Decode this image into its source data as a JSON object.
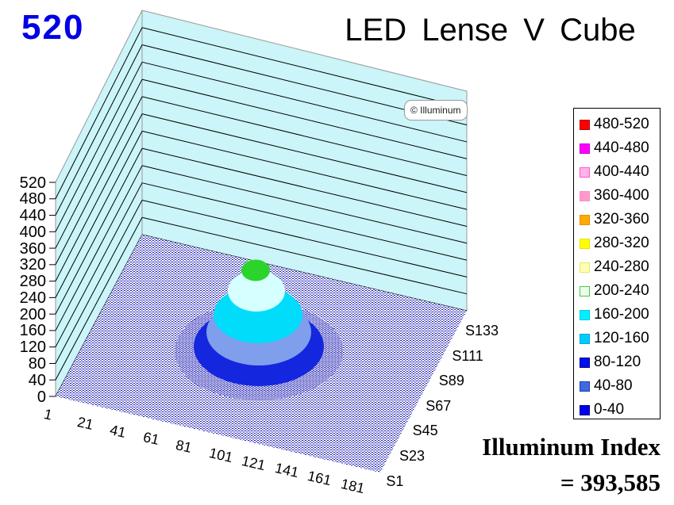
{
  "corner_value": "520",
  "title": "LED Lense V Cube",
  "watermark": {
    "text": "© Illuminum"
  },
  "index_caption": {
    "line1": "Illuminum Index",
    "line2": "= 393,585"
  },
  "legend": {
    "items": [
      {
        "label": "480-520",
        "fill": "#FF0000",
        "border": "#C00000"
      },
      {
        "label": "440-480",
        "fill": "#FF00FF",
        "border": "#C800C8"
      },
      {
        "label": "400-440",
        "fill": "#FFB3E6",
        "border": "#FF55D5"
      },
      {
        "label": "360-400",
        "fill": "#FF99CC",
        "border": "#F593C2"
      },
      {
        "label": "320-360",
        "fill": "#FFAA00",
        "border": "#E09000"
      },
      {
        "label": "280-320",
        "fill": "#FFFF00",
        "border": "#E6E600"
      },
      {
        "label": "240-280",
        "fill": "#FFFFB3",
        "border": "#E8E86A"
      },
      {
        "label": "200-240",
        "fill": "#EBFFEB",
        "border": "#4CC44C"
      },
      {
        "label": "160-200",
        "fill": "#00F0FF",
        "border": "#00C8E0"
      },
      {
        "label": "120-160",
        "fill": "#00CCFF",
        "border": "#00A8E0"
      },
      {
        "label": "80-120",
        "fill": "#0011EE",
        "border": "#000090"
      },
      {
        "label": "40-80",
        "fill": "#4169E1",
        "border": "#2040B0"
      },
      {
        "label": "0-40",
        "fill": "#0000EE",
        "border": "#000080"
      }
    ]
  },
  "chart_data": {
    "type": "3d-surface",
    "title": "LED Lense V Cube",
    "value_axis": {
      "min": 0,
      "max": 520,
      "step": 40,
      "ticks": [
        "520",
        "480",
        "440",
        "400",
        "360",
        "320",
        "280",
        "240",
        "200",
        "160",
        "120",
        "80",
        "40",
        "0"
      ]
    },
    "category_axis": {
      "ticks": [
        "1",
        "21",
        "41",
        "61",
        "81",
        "101",
        "121",
        "141",
        "161",
        "181"
      ],
      "range": [
        1,
        181
      ]
    },
    "series_axis": {
      "ticks_back_to_front": [
        "S133",
        "S111",
        "S89",
        "S67",
        "S45",
        "S23",
        "S1"
      ]
    },
    "bands": [
      "0-40",
      "40-80",
      "80-120",
      "120-160",
      "160-200",
      "200-240",
      "240-280",
      "280-320",
      "320-360",
      "360-400",
      "400-440",
      "440-480",
      "480-520"
    ],
    "surface": {
      "shape": "single central circular peak (LED lens beam) rising from a flat near-zero floor",
      "floor_band": "0-40",
      "floor_dot_color": "#1B1BB0",
      "peak_band": "200-240",
      "peak_value_approx": 220,
      "peak_location_approx": {
        "category": 91,
        "series": "S67"
      },
      "rings_outer_to_peak": [
        {
          "band": "40-80",
          "color": "#1526DF"
        },
        {
          "band": "80-120",
          "color": "#7F9FEC"
        },
        {
          "band": "120-200",
          "color": "#00DCFA"
        },
        {
          "band": "200-240",
          "color": "#D6FFFF"
        },
        {
          "band": "200-240 peak cap",
          "color": "#2BD42B"
        }
      ]
    },
    "walls": {
      "fill": "#CBF5F8",
      "edge": "#999999",
      "gridline": "#000000"
    },
    "legend_position": "right",
    "grid": true
  }
}
